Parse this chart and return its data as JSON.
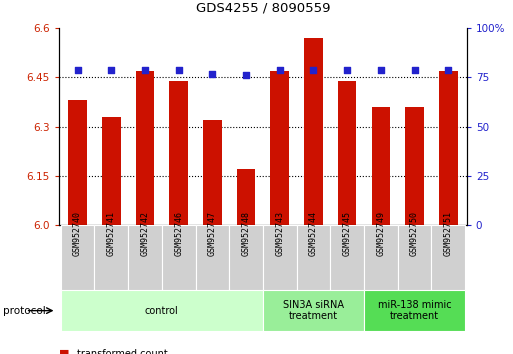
{
  "title": "GDS4255 / 8090559",
  "samples": [
    "GSM952740",
    "GSM952741",
    "GSM952742",
    "GSM952746",
    "GSM952747",
    "GSM952748",
    "GSM952743",
    "GSM952744",
    "GSM952745",
    "GSM952749",
    "GSM952750",
    "GSM952751"
  ],
  "red_values": [
    6.38,
    6.33,
    6.47,
    6.44,
    6.32,
    6.17,
    6.47,
    6.57,
    6.44,
    6.36,
    6.36,
    6.47
  ],
  "blue_values": [
    79,
    79,
    79,
    79,
    77,
    76,
    79,
    79,
    79,
    79,
    79,
    79
  ],
  "groups": [
    {
      "label": "control",
      "start": 0,
      "end": 6,
      "color": "#ccffcc"
    },
    {
      "label": "SIN3A siRNA\ntreatment",
      "start": 6,
      "end": 9,
      "color": "#99ee99"
    },
    {
      "label": "miR-138 mimic\ntreatment",
      "start": 9,
      "end": 12,
      "color": "#55dd55"
    }
  ],
  "ylim_left": [
    6.0,
    6.6
  ],
  "ylim_right": [
    0,
    100
  ],
  "yticks_left": [
    6.0,
    6.15,
    6.3,
    6.45,
    6.6
  ],
  "yticks_right": [
    0,
    25,
    50,
    75,
    100
  ],
  "bar_color": "#cc1100",
  "dot_color": "#2222cc",
  "bar_width": 0.55,
  "protocol_label": "protocol"
}
